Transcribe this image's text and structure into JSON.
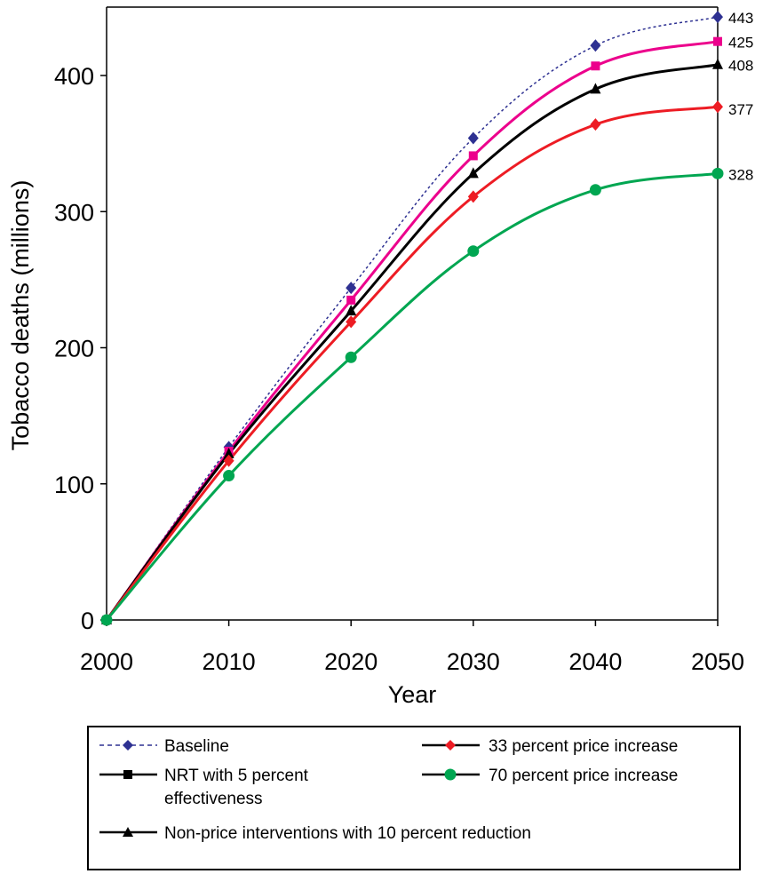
{
  "chart_data": {
    "type": "line",
    "xlabel": "Year",
    "ylabel": "Tobacco deaths (millions)",
    "xlim": [
      2000,
      2050
    ],
    "ylim": [
      0,
      450
    ],
    "xticks": [
      "2000",
      "2010",
      "2020",
      "2030",
      "2040",
      "2050"
    ],
    "yticks": [
      "0",
      "100",
      "200",
      "300",
      "400"
    ],
    "grid": false,
    "legend_position": "bottom",
    "x": [
      2000,
      2010,
      2020,
      2030,
      2040,
      2050
    ],
    "series": [
      {
        "key": "baseline",
        "name": "Baseline",
        "color": "#2e3192",
        "marker": "diamond",
        "line": "dashed",
        "values": [
          0,
          127,
          244,
          354,
          422,
          443
        ],
        "end_label": "443"
      },
      {
        "key": "nrt",
        "name": "NRT with 5 percent effectiveness",
        "color": "#ec008c",
        "marker": "square",
        "line": "solid",
        "values": [
          0,
          124,
          235,
          341,
          407,
          425
        ],
        "end_label": "425"
      },
      {
        "key": "nonprice",
        "name": "Non-price interventions with 10 percent reduction",
        "color": "#000000",
        "marker": "triangle",
        "line": "solid",
        "values": [
          0,
          122,
          227,
          328,
          390,
          408
        ],
        "end_label": "408"
      },
      {
        "key": "price33",
        "name": "33 percent price increase",
        "color": "#ed1c24",
        "marker": "diamond",
        "line": "solid",
        "values": [
          0,
          117,
          219,
          311,
          364,
          377
        ],
        "end_label": "377"
      },
      {
        "key": "price70",
        "name": "70 percent price increase",
        "color": "#00a651",
        "marker": "circle",
        "line": "solid",
        "values": [
          0,
          106,
          193,
          271,
          316,
          328
        ],
        "end_label": "328"
      }
    ],
    "legend": {
      "baseline": "Baseline",
      "price33": "33 percent price increase",
      "nrt_line1": "NRT with 5 percent",
      "nrt_line2": "effectiveness",
      "price70": "70 percent price increase",
      "nonprice": "Non-price interventions with 10 percent reduction"
    }
  }
}
